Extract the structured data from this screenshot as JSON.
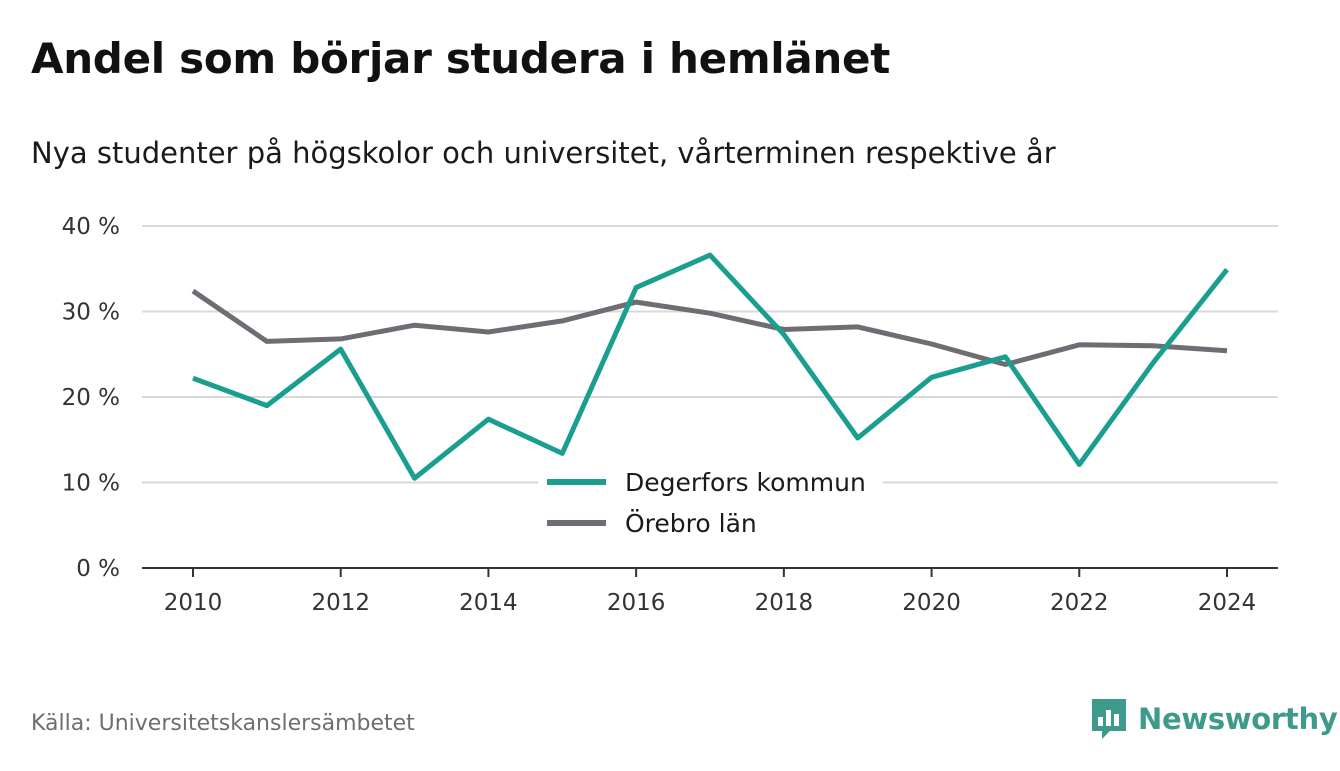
{
  "title": "Andel som börjar studera i hemlänet",
  "subtitle": "Nya studenter på högskolor och universitet, vårterminen respektive år",
  "source": "Källa: Universitetskanslersämbetet",
  "brand": {
    "name": "Newsworthy",
    "icon": "newsworthy-logo-icon",
    "color": "#3e9a8b"
  },
  "chart_data": {
    "type": "line",
    "title": "Andel som börjar studera i hemlänet",
    "subtitle": "Nya studenter på högskolor och universitet, vårterminen respektive år",
    "x": [
      2010,
      2011,
      2012,
      2013,
      2014,
      2015,
      2016,
      2017,
      2018,
      2019,
      2020,
      2021,
      2022,
      2023,
      2024
    ],
    "x_ticks": [
      2010,
      2012,
      2014,
      2016,
      2018,
      2020,
      2022,
      2024
    ],
    "x_tick_labels": [
      "2010",
      "2012",
      "2014",
      "2016",
      "2018",
      "2020",
      "2022",
      "2024"
    ],
    "y_ticks": [
      0,
      10,
      20,
      30,
      40
    ],
    "y_tick_labels": [
      "0 %",
      "10 %",
      "20 %",
      "30 %",
      "40 %"
    ],
    "ylim": [
      0,
      40
    ],
    "grid": true,
    "legend": "center",
    "series": [
      {
        "name": "Degerfors kommun",
        "color": "#1a9e8f",
        "values": [
          22.2,
          19.0,
          25.6,
          10.5,
          17.4,
          13.4,
          32.8,
          36.6,
          27.3,
          15.2,
          22.3,
          24.7,
          12.1,
          24.0,
          34.9
        ]
      },
      {
        "name": "Örebro län",
        "color": "#6f6d73",
        "values": [
          32.4,
          26.5,
          26.8,
          28.4,
          27.6,
          28.9,
          31.1,
          29.8,
          27.9,
          28.2,
          26.2,
          23.8,
          26.1,
          26.0,
          25.4
        ]
      }
    ]
  }
}
